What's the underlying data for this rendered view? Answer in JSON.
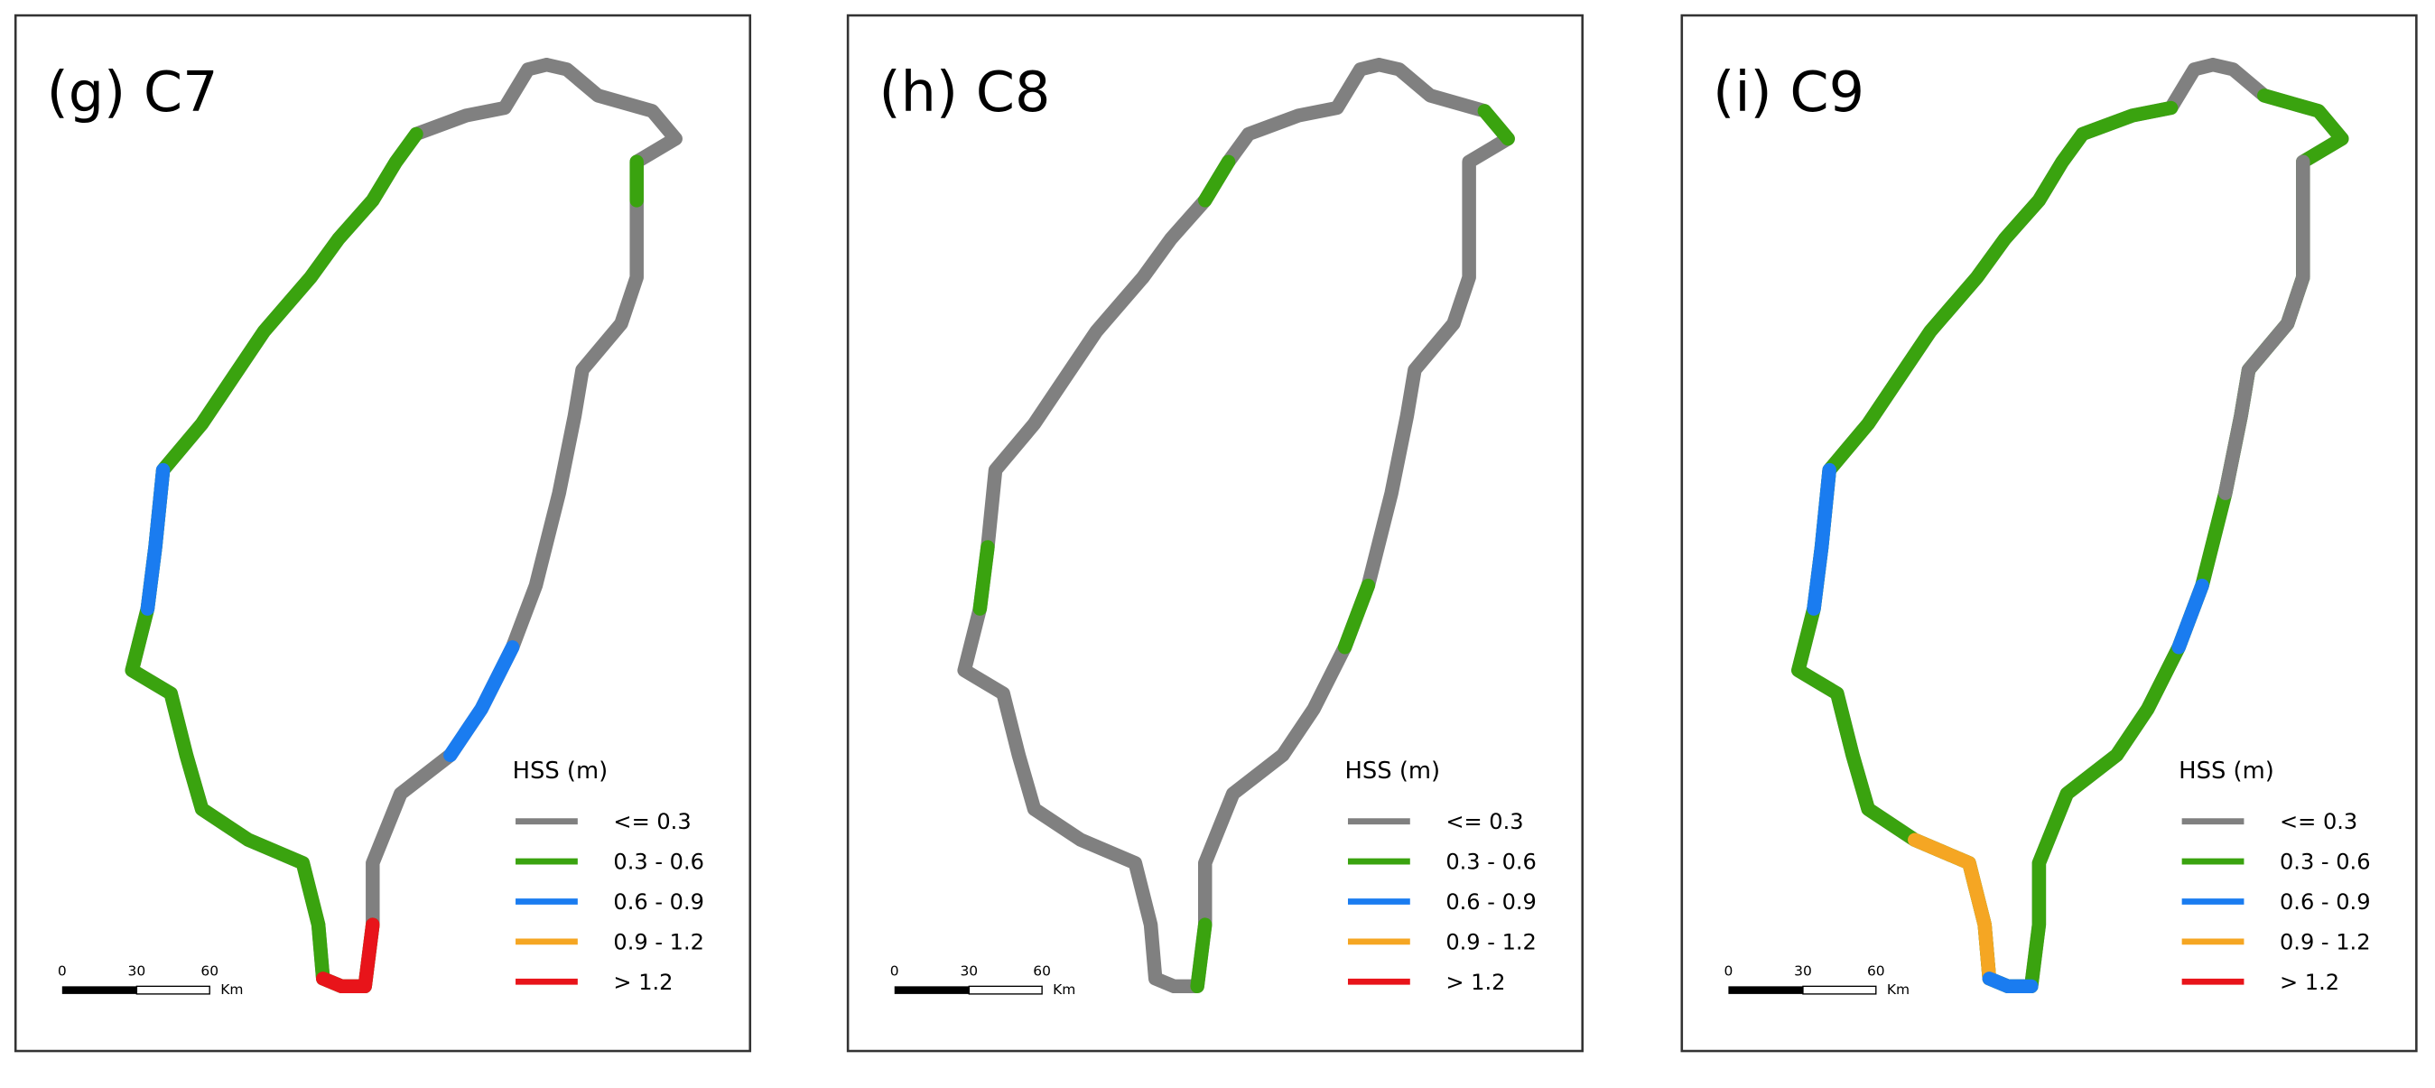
{
  "panels": [
    {
      "title": "(g) C7",
      "legend": {
        "title": "HSS (m)",
        "items": [
          {
            "label": "<= 0.3",
            "color": "#808080"
          },
          {
            "label": "0.3 - 0.6",
            "color": "#3aa30f"
          },
          {
            "label": "0.6 - 0.9",
            "color": "#1a7cf0"
          },
          {
            "label": "0.9 - 1.2",
            "color": "#f5a623"
          },
          {
            "label": "> 1.2",
            "color": "#e8141a"
          }
        ]
      },
      "scale": [
        "0",
        "30",
        "60",
        "Km"
      ]
    },
    {
      "title": "(h) C8",
      "legend": {
        "title": "HSS (m)",
        "items": [
          {
            "label": "<= 0.3",
            "color": "#808080"
          },
          {
            "label": "0.3 - 0.6",
            "color": "#3aa30f"
          },
          {
            "label": "0.6 - 0.9",
            "color": "#1a7cf0"
          },
          {
            "label": "0.9 - 1.2",
            "color": "#f5a623"
          },
          {
            "label": "> 1.2",
            "color": "#e8141a"
          }
        ]
      },
      "scale": [
        "0",
        "30",
        "60",
        "Km"
      ]
    },
    {
      "title": "(i) C9",
      "legend": {
        "title": "HSS (m)",
        "items": [
          {
            "label": "<= 0.3",
            "color": "#808080"
          },
          {
            "label": "0.3 - 0.6",
            "color": "#3aa30f"
          },
          {
            "label": "0.6 - 0.9",
            "color": "#1a7cf0"
          },
          {
            "label": "0.9 - 1.2",
            "color": "#f5a623"
          },
          {
            "label": "> 1.2",
            "color": "#e8141a"
          }
        ]
      },
      "scale": [
        "0",
        "30",
        "60",
        "Km"
      ]
    }
  ]
}
